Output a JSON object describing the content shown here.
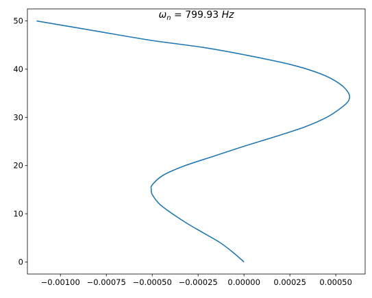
{
  "chart_data": {
    "type": "line",
    "title": "ω_n = 799.93 Hz",
    "title_parts": {
      "symbol": "ω",
      "subscript": "n",
      "equals": " = ",
      "value": "799.93",
      "unit": " Hz"
    },
    "xlabel": "",
    "ylabel": "",
    "xlim": [
      -0.00118,
      0.00066
    ],
    "ylim": [
      -2.5,
      52.5
    ],
    "grid": false,
    "line_color": "#1f77b4",
    "x_ticks": [
      {
        "value": -0.001,
        "label": "−0.00100"
      },
      {
        "value": -0.00075,
        "label": "−0.00075"
      },
      {
        "value": -0.0005,
        "label": "−0.00050"
      },
      {
        "value": -0.00025,
        "label": "−0.00025"
      },
      {
        "value": 0.0,
        "label": "0.00000"
      },
      {
        "value": 0.00025,
        "label": "0.00025"
      },
      {
        "value": 0.0005,
        "label": "0.00050"
      }
    ],
    "y_ticks": [
      {
        "value": 0,
        "label": "0"
      },
      {
        "value": 10,
        "label": "10"
      },
      {
        "value": 20,
        "label": "20"
      },
      {
        "value": 30,
        "label": "30"
      },
      {
        "value": 40,
        "label": "40"
      },
      {
        "value": 50,
        "label": "50"
      }
    ],
    "series": [
      {
        "x": [
          0.0,
          -6e-05,
          -0.00013,
          -0.00022,
          -0.00031,
          -0.00039,
          -0.00046,
          -0.0005,
          -0.000505,
          -0.0005,
          -0.00044,
          -0.00032,
          -0.00016,
          0.0,
          0.00017,
          0.00033,
          0.00045,
          0.00053,
          0.00057,
          0.00057,
          0.00052,
          0.00042,
          0.00025,
          0.0,
          -0.00022,
          -0.00051,
          -0.00082,
          -0.00113
        ],
        "y": [
          0,
          2,
          4,
          6,
          8,
          10,
          12,
          14,
          15,
          16,
          18,
          20,
          22,
          24,
          26,
          28,
          30,
          32,
          33.5,
          35,
          37,
          39,
          41,
          43,
          44.5,
          46,
          48,
          50
        ]
      }
    ]
  }
}
